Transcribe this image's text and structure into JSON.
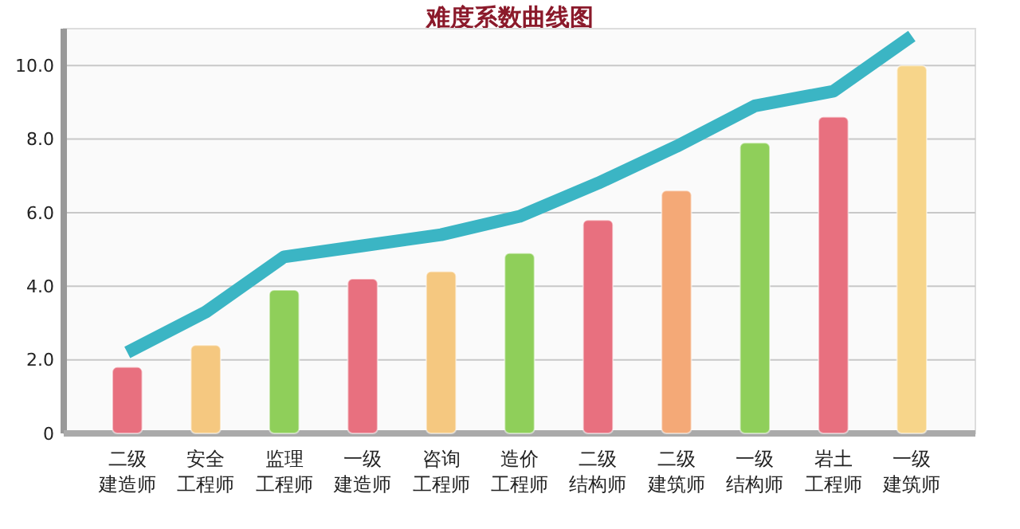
{
  "chart_data": {
    "type": "bar",
    "title": "难度系数曲线图",
    "categories": [
      "二级建造师",
      "安全工程师",
      "监理工程师",
      "一级建造师",
      "咨询工程师",
      "造价工程师",
      "二级结构师",
      "二级建筑师",
      "一级结构师",
      "岩土工程师",
      "一级建筑师"
    ],
    "series": [
      {
        "values": [
          1.8,
          2.4,
          3.9,
          4.2,
          4.4,
          4.9,
          5.8,
          6.6,
          7.9,
          8.6,
          10.0
        ],
        "colors": [
          "#e8707f",
          "#f5c880",
          "#8fcf5a",
          "#e8707f",
          "#f5c880",
          "#8fcf5a",
          "#e8707f",
          "#f4a977",
          "#8fcf5a",
          "#e8707f",
          "#f7d58a"
        ]
      },
      {
        "type": "line",
        "color": "#3bb5c4",
        "values": [
          2.2,
          3.3,
          4.8,
          5.1,
          5.4,
          5.9,
          6.8,
          7.8,
          8.9,
          9.3,
          10.8
        ]
      }
    ],
    "ylim": [
      0,
      11
    ],
    "yticks": [
      {
        "value": 0,
        "label": "0"
      },
      {
        "value": 2,
        "label": "2.0"
      },
      {
        "value": 4,
        "label": "4.0"
      },
      {
        "value": 6,
        "label": "6.0"
      },
      {
        "value": 8,
        "label": "8.0"
      },
      {
        "value": 10,
        "label": "10.0"
      }
    ],
    "grid": "y",
    "marker": "none"
  }
}
